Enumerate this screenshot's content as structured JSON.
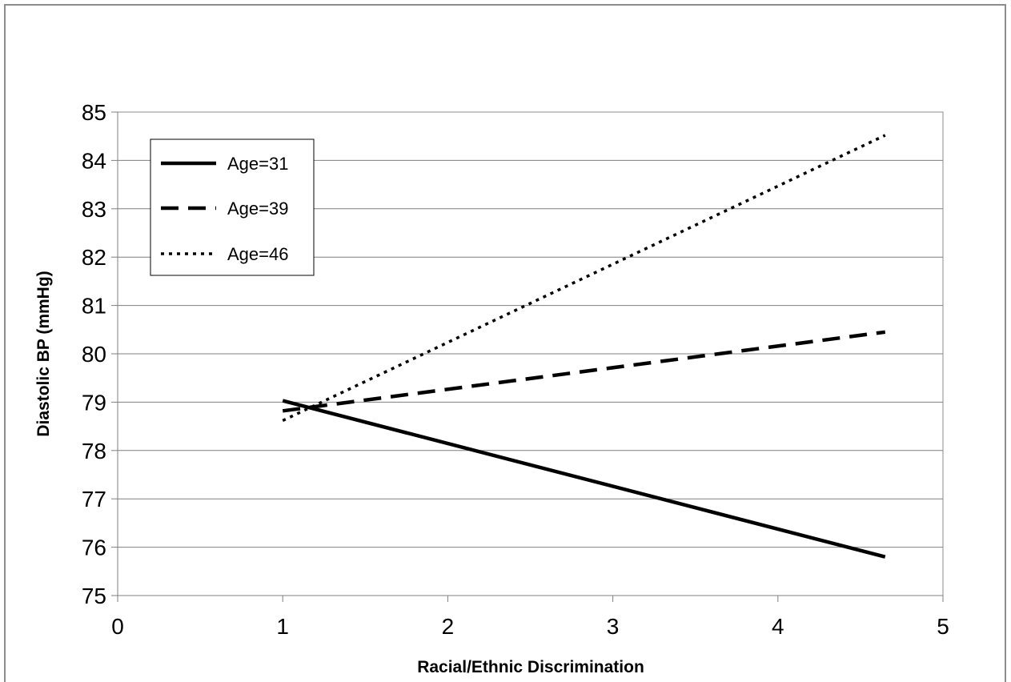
{
  "chart_data": {
    "type": "line",
    "title": "",
    "xlabel": "Racial/Ethnic Discrimination",
    "ylabel": "Diastolic BP (mmHg)",
    "xlim": [
      0,
      5
    ],
    "ylim": [
      75,
      85
    ],
    "x_ticks": [
      "0",
      "1",
      "2",
      "3",
      "4",
      "5"
    ],
    "y_ticks": [
      "75",
      "76",
      "77",
      "78",
      "79",
      "80",
      "81",
      "82",
      "83",
      "84",
      "85"
    ],
    "grid": "horizontal",
    "legend_position": "top-left",
    "series": [
      {
        "name": "Age=31",
        "style": "solid",
        "color": "#000000",
        "x": [
          1,
          4.65
        ],
        "y": [
          79.03,
          75.8
        ]
      },
      {
        "name": "Age=39",
        "style": "dashed",
        "color": "#000000",
        "x": [
          1,
          4.65
        ],
        "y": [
          78.82,
          80.45
        ]
      },
      {
        "name": "Age=46",
        "style": "dotted",
        "color": "#000000",
        "x": [
          1,
          4.65
        ],
        "y": [
          78.62,
          84.52
        ]
      }
    ]
  }
}
